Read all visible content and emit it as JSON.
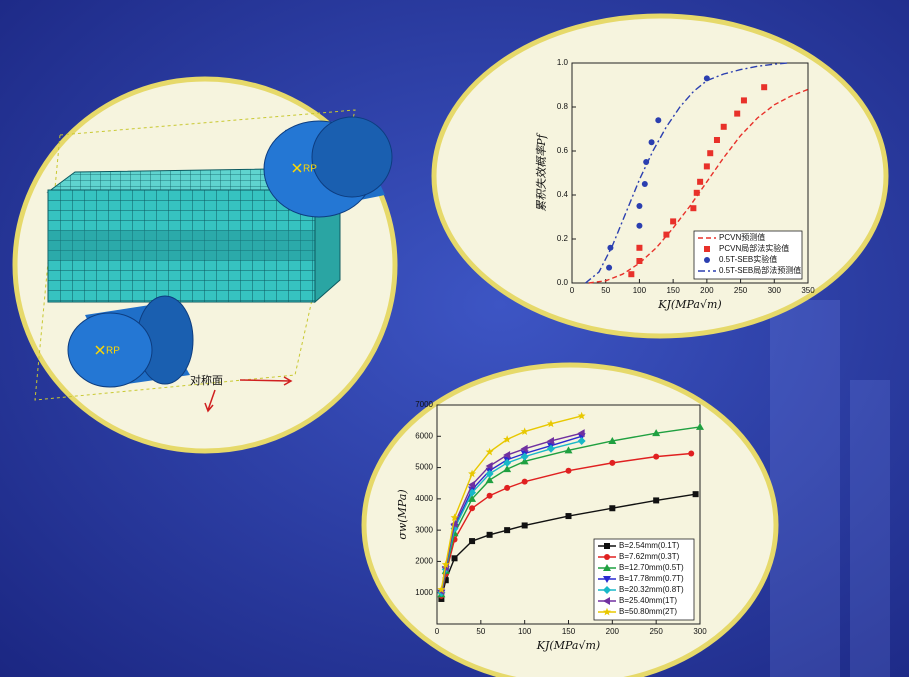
{
  "model": {
    "labels": [
      "RP",
      "RP"
    ],
    "plane_label": "对称面"
  },
  "chart_data": [
    {
      "type": "scatter-line",
      "xlabel": "KJ(MPa√m)",
      "ylabel": "累积失效概率Pf",
      "xlim": [
        0,
        350
      ],
      "xticks": [
        0,
        50,
        100,
        150,
        200,
        250,
        300,
        350
      ],
      "ylim": [
        0,
        1.0
      ],
      "yticks": [
        {
          "value": 0,
          "label": "0.0"
        },
        0.2,
        0.4,
        0.6,
        0.8,
        {
          "value": 1.0,
          "label": "1.0"
        }
      ],
      "legend": "lower right",
      "series": [
        {
          "name": "PCVN预测值",
          "color": "#e8312a",
          "line": "dashed",
          "marker": "none",
          "x": [
            25,
            50,
            75,
            100,
            125,
            150,
            175,
            200,
            225,
            250,
            275,
            300,
            325,
            350
          ],
          "values": [
            0,
            0.01,
            0.04,
            0.09,
            0.16,
            0.25,
            0.35,
            0.46,
            0.57,
            0.67,
            0.75,
            0.81,
            0.85,
            0.88
          ]
        },
        {
          "name": "PCVN局部法实验值",
          "color": "#e8312a",
          "line": "none",
          "marker": "square",
          "x": [
            88,
            100,
            100,
            140,
            150,
            180,
            185,
            190,
            200,
            205,
            215,
            225,
            245,
            255,
            285
          ],
          "values": [
            0.04,
            0.1,
            0.16,
            0.22,
            0.28,
            0.34,
            0.41,
            0.46,
            0.53,
            0.59,
            0.65,
            0.71,
            0.77,
            0.83,
            0.89
          ]
        },
        {
          "name": "0.5T-SEB实验值",
          "color": "#2b3fb0",
          "line": "none",
          "marker": "circle",
          "x": [
            55,
            57,
            100,
            100,
            108,
            110,
            118,
            128,
            200
          ],
          "values": [
            0.07,
            0.16,
            0.26,
            0.35,
            0.45,
            0.55,
            0.64,
            0.74,
            0.93
          ]
        },
        {
          "name": "0.5T-SEB局部法预测值",
          "color": "#2b3fb0",
          "line": "dashdot",
          "marker": "none",
          "x": [
            20,
            40,
            60,
            80,
            100,
            120,
            140,
            160,
            180,
            200,
            225,
            250,
            275,
            300,
            320
          ],
          "values": [
            0,
            0.05,
            0.17,
            0.32,
            0.47,
            0.6,
            0.71,
            0.8,
            0.87,
            0.92,
            0.95,
            0.97,
            0.985,
            0.995,
            1.0
          ]
        }
      ]
    },
    {
      "type": "line",
      "xlabel": "KJ(MPa√m)",
      "ylabel": "σw(MPa)",
      "xlim": [
        0,
        300
      ],
      "xticks": [
        0,
        50,
        100,
        150,
        200,
        250,
        300
      ],
      "ylim": [
        0,
        7000
      ],
      "yticks": [
        1000,
        2000,
        3000,
        4000,
        5000,
        6000,
        7000
      ],
      "legend": "lower right",
      "series": [
        {
          "name": "B=2.54mm(0.1T)",
          "color": "#111111",
          "line": "solid",
          "marker": "square",
          "x": [
            5,
            10,
            20,
            40,
            60,
            80,
            100,
            150,
            200,
            250,
            295
          ],
          "values": [
            800,
            1400,
            2100,
            2650,
            2850,
            3000,
            3150,
            3450,
            3700,
            3950,
            4150
          ]
        },
        {
          "name": "B=7.62mm(0.3T)",
          "color": "#e02020",
          "line": "solid",
          "marker": "circle",
          "x": [
            5,
            10,
            20,
            40,
            60,
            80,
            100,
            150,
            200,
            250,
            290
          ],
          "values": [
            900,
            1600,
            2700,
            3700,
            4100,
            4350,
            4550,
            4900,
            5150,
            5350,
            5450
          ]
        },
        {
          "name": "B=12.70mm(0.5T)",
          "color": "#1fa040",
          "line": "solid",
          "marker": "triangle",
          "x": [
            5,
            10,
            20,
            40,
            60,
            80,
            100,
            150,
            200,
            250,
            300
          ],
          "values": [
            950,
            1700,
            2900,
            4000,
            4600,
            4950,
            5200,
            5550,
            5850,
            6100,
            6300
          ]
        },
        {
          "name": "B=17.78mm(0.7T)",
          "color": "#2a2ad0",
          "line": "solid",
          "marker": "triangle-down",
          "x": [
            5,
            10,
            20,
            40,
            60,
            80,
            100,
            130,
            165
          ],
          "values": [
            1000,
            1750,
            3100,
            4300,
            4900,
            5250,
            5450,
            5700,
            6000
          ]
        },
        {
          "name": "B=20.32mm(0.8T)",
          "color": "#18b8c8",
          "line": "solid",
          "marker": "diamond",
          "x": [
            5,
            10,
            20,
            40,
            60,
            80,
            100,
            130,
            165
          ],
          "values": [
            1000,
            1750,
            3050,
            4200,
            4800,
            5150,
            5350,
            5600,
            5850
          ]
        },
        {
          "name": "B=25.40mm(1T)",
          "color": "#7030a0",
          "line": "solid",
          "marker": "triangle-left",
          "x": [
            5,
            10,
            20,
            40,
            60,
            80,
            100,
            130,
            165
          ],
          "values": [
            1050,
            1800,
            3200,
            4450,
            5050,
            5400,
            5600,
            5850,
            6100
          ]
        },
        {
          "name": "B=50.80mm(2T)",
          "color": "#e8c800",
          "line": "solid",
          "marker": "star",
          "x": [
            5,
            10,
            20,
            40,
            60,
            80,
            100,
            130,
            165
          ],
          "values": [
            1100,
            1900,
            3400,
            4800,
            5500,
            5900,
            6150,
            6400,
            6650
          ]
        }
      ]
    }
  ]
}
